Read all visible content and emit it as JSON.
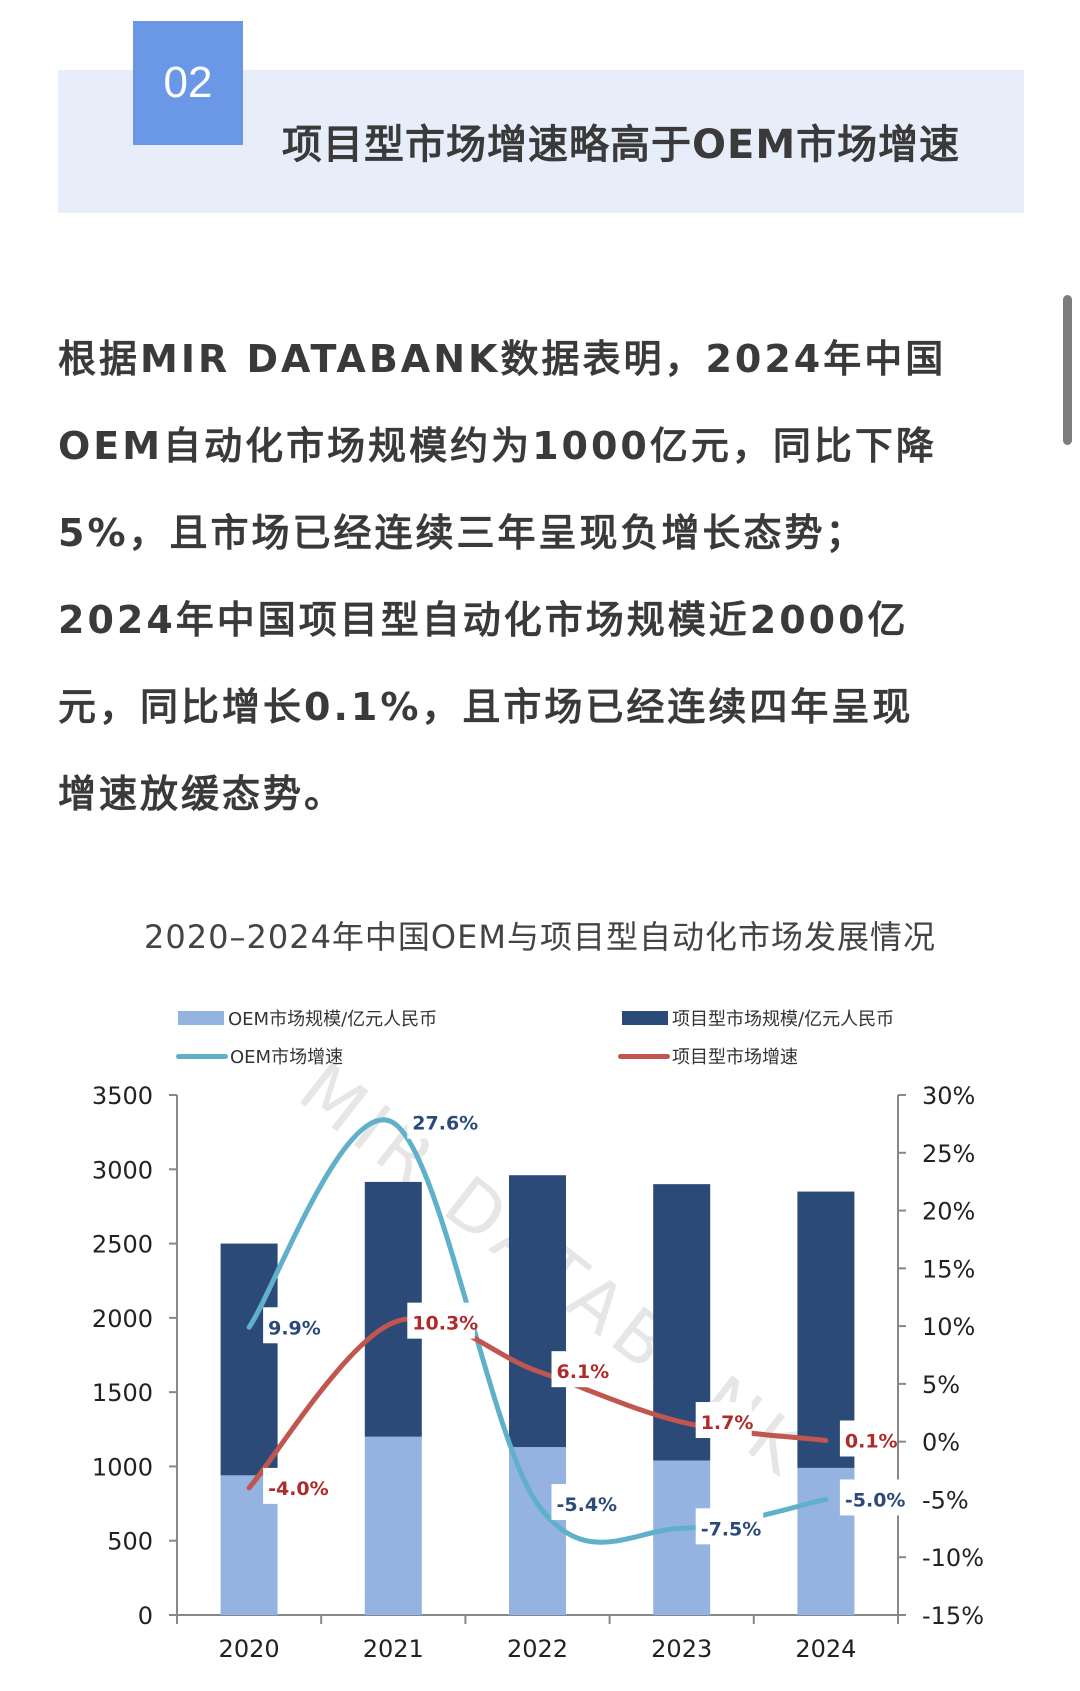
{
  "section": {
    "number": "02",
    "title": "项目型市场增速略高于OEM市场增速"
  },
  "body": {
    "lines": [
      "根据MIR DATABANK数据表明，2024年中国",
      "OEM自动化市场规模约为1000亿元，同比下降",
      "5%，且市场已经连续三年呈现负增长态势；",
      "2024年中国项目型自动化市场规模近2000亿",
      "元，同比增长0.1%，且市场已经连续四年呈现",
      "增速放缓态势。"
    ]
  },
  "colors": {
    "section_number_bg": "#6a98e6",
    "header_band_bg": "#e8eef9",
    "oem_bar": "#95b3e0",
    "project_bar": "#2b4a78",
    "oem_line": "#5fb0c8",
    "project_line": "#c0564e",
    "oem_label": "#2b4a78",
    "project_label": "#b02a2a"
  },
  "chart_data": {
    "type": "bar",
    "title": "2020–2024年中国OEM与项目型自动化市场发展情况",
    "categories": [
      "2020",
      "2021",
      "2022",
      "2023",
      "2024"
    ],
    "stacked": true,
    "series": [
      {
        "name": "OEM市场规模/亿元人民币",
        "type": "bar",
        "axis": "left",
        "values": [
          940,
          1200,
          1130,
          1040,
          990
        ]
      },
      {
        "name": "项目型市场规模/亿元人民币",
        "type": "bar",
        "axis": "left",
        "values": [
          1560,
          1715,
          1830,
          1860,
          1860
        ]
      },
      {
        "name": "OEM市场增速",
        "type": "line",
        "axis": "right",
        "values": [
          9.9,
          27.6,
          -5.4,
          -7.5,
          -5.0
        ],
        "labels": [
          "9.9%",
          "27.6%",
          "-5.4%",
          "-7.5%",
          "-5.0%"
        ]
      },
      {
        "name": "项目型市场增速",
        "type": "line",
        "axis": "right",
        "values": [
          -4.0,
          10.3,
          6.1,
          1.7,
          0.1
        ],
        "labels": [
          "-4.0%",
          "10.3%",
          "6.1%",
          "1.7%",
          "0.1%"
        ]
      }
    ],
    "legend": [
      {
        "label": "OEM市场规模/亿元人民币",
        "kind": "box"
      },
      {
        "label": "项目型市场规模/亿元人民币",
        "kind": "box"
      },
      {
        "label": "OEM市场增速",
        "kind": "line"
      },
      {
        "label": "项目型市场增速",
        "kind": "line"
      }
    ],
    "left_axis": {
      "ticks": [
        "0",
        "500",
        "1000",
        "1500",
        "2000",
        "2500",
        "3000",
        "3500"
      ],
      "ylim": [
        0,
        3500
      ]
    },
    "right_axis": {
      "ticks": [
        "-15%",
        "-10%",
        "-5%",
        "0%",
        "5%",
        "10%",
        "15%",
        "20%",
        "25%",
        "30%"
      ],
      "ylim": [
        -15,
        30
      ]
    },
    "xlabel": "",
    "ylabel": "",
    "grid": false,
    "legend_position": "top",
    "watermark": "MIR DATABANK"
  }
}
